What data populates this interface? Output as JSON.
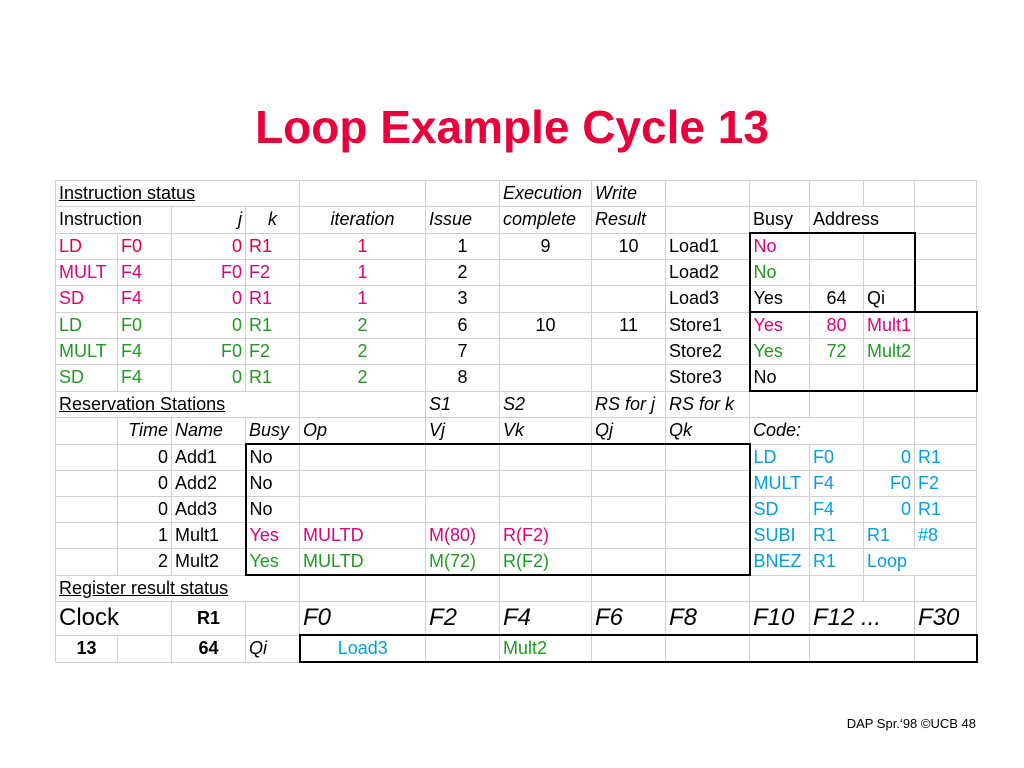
{
  "title": "Loop Example Cycle 13",
  "colors": {
    "red": "#e8003c",
    "green": "#1f9a1f",
    "blue": "#00a0e0",
    "magenta": "#e0007a"
  },
  "instruction_status": {
    "title": "Instruction status",
    "headers": {
      "execution": "Execution",
      "complete": "complete",
      "write": "Write",
      "result": "Result",
      "instruction": "Instruction",
      "j": "j",
      "k": "k",
      "iteration": "iteration",
      "issue": "Issue"
    },
    "rows": [
      {
        "op": "LD",
        "j": "F0",
        "k": "0",
        "reg": "R1",
        "iteration": "1",
        "issue": "1",
        "exec": "9",
        "write": "10"
      },
      {
        "op": "MULT",
        "j": "F4",
        "k": "F0",
        "reg": "F2",
        "iteration": "1",
        "issue": "2",
        "exec": "",
        "write": ""
      },
      {
        "op": "SD",
        "j": "F4",
        "k": "0",
        "reg": "R1",
        "iteration": "1",
        "issue": "3",
        "exec": "",
        "write": ""
      },
      {
        "op": "LD",
        "j": "F0",
        "k": "0",
        "reg": "R1",
        "iteration": "2",
        "issue": "6",
        "exec": "10",
        "write": "11"
      },
      {
        "op": "MULT",
        "j": "F4",
        "k": "F0",
        "reg": "F2",
        "iteration": "2",
        "issue": "7",
        "exec": "",
        "write": ""
      },
      {
        "op": "SD",
        "j": "F4",
        "k": "0",
        "reg": "R1",
        "iteration": "2",
        "issue": "8",
        "exec": "",
        "write": ""
      }
    ]
  },
  "load_store": {
    "headers": {
      "busy": "Busy",
      "address": "Address"
    },
    "rows": [
      {
        "name": "Load1",
        "busy": "No",
        "address": "",
        "qi": ""
      },
      {
        "name": "Load2",
        "busy": "No",
        "address": "",
        "qi": ""
      },
      {
        "name": "Load3",
        "busy": "Yes",
        "address": "64",
        "qi": "Qi"
      },
      {
        "name": "Store1",
        "busy": "Yes",
        "address": "80",
        "qi": "Mult1"
      },
      {
        "name": "Store2",
        "busy": "Yes",
        "address": "72",
        "qi": "Mult2"
      },
      {
        "name": "Store3",
        "busy": "No",
        "address": "",
        "qi": ""
      }
    ]
  },
  "reservation_stations": {
    "title": "Reservation Stations",
    "headers": {
      "s1": "S1",
      "s2": "S2",
      "rsj": "RS for j",
      "rsk": "RS for k",
      "time": "Time",
      "name": "Name",
      "busy": "Busy",
      "op": "Op",
      "vj": "Vj",
      "vk": "Vk",
      "qj": "Qj",
      "qk": "Qk",
      "code": "Code:"
    },
    "rows": [
      {
        "time": "0",
        "name": "Add1",
        "busy": "No",
        "op": "",
        "vj": "",
        "vk": "",
        "qj": "",
        "qk": ""
      },
      {
        "time": "0",
        "name": "Add2",
        "busy": "No",
        "op": "",
        "vj": "",
        "vk": "",
        "qj": "",
        "qk": ""
      },
      {
        "time": "0",
        "name": "Add3",
        "busy": "No",
        "op": "",
        "vj": "",
        "vk": "",
        "qj": "",
        "qk": ""
      },
      {
        "time": "1",
        "name": "Mult1",
        "busy": "Yes",
        "op": "MULTD",
        "vj": "M(80)",
        "vk": "R(F2)",
        "qj": "",
        "qk": ""
      },
      {
        "time": "2",
        "name": "Mult2",
        "busy": "Yes",
        "op": "MULTD",
        "vj": "M(72)",
        "vk": "R(F2)",
        "qj": "",
        "qk": ""
      }
    ]
  },
  "code": [
    {
      "op": "LD",
      "a": "F0",
      "b": "0",
      "c": "R1"
    },
    {
      "op": "MULT",
      "a": "F4",
      "b": "F0",
      "c": "F2"
    },
    {
      "op": "SD",
      "a": "F4",
      "b": "0",
      "c": "R1"
    },
    {
      "op": "SUBI",
      "a": "R1",
      "b": "R1",
      "c": "#8"
    },
    {
      "op": "BNEZ",
      "a": "R1",
      "b": "Loop",
      "c": ""
    }
  ],
  "register_result": {
    "title": "Register result status",
    "clock_label": "Clock",
    "r1_label": "R1",
    "registers": [
      "F0",
      "F2",
      "F4",
      "F6",
      "F8",
      "F10",
      "F12 ...",
      "F30"
    ],
    "clock": "13",
    "r1": "64",
    "qi_label": "Qi",
    "values": [
      "Load3",
      "",
      "Mult2",
      "",
      "",
      "",
      "",
      ""
    ]
  },
  "footer": "DAP Spr.‘98 ©UCB 48"
}
